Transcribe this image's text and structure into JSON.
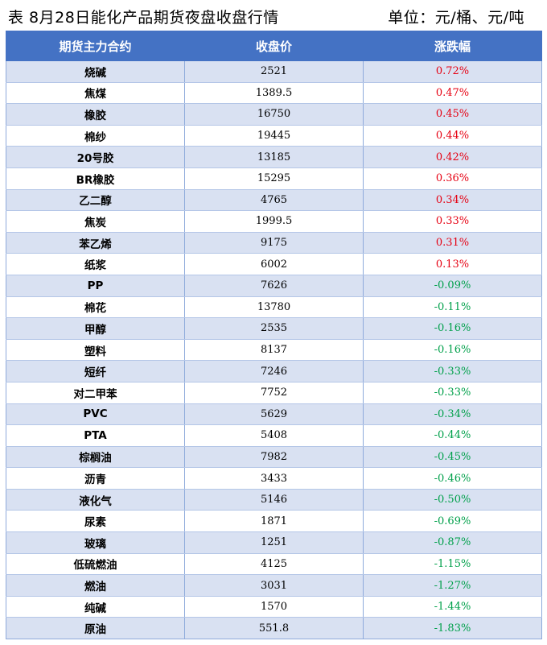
{
  "caption": {
    "title": "表 8月28日能化产品期货夜盘收盘行情",
    "unit": "单位：元/桶、元/吨"
  },
  "colors": {
    "header_bg": "#4472c4",
    "stripe": "#d9e1f2",
    "up": "#e60012",
    "down": "#00a04a"
  },
  "table": {
    "headers": [
      "期货主力合约",
      "收盘价",
      "涨跌幅"
    ],
    "rows": [
      {
        "name": "烧碱",
        "close": "2521",
        "change": "0.72%"
      },
      {
        "name": "焦煤",
        "close": "1389.5",
        "change": "0.47%"
      },
      {
        "name": "橡胶",
        "close": "16750",
        "change": "0.45%"
      },
      {
        "name": "棉纱",
        "close": "19445",
        "change": "0.44%"
      },
      {
        "name": "20号胶",
        "close": "13185",
        "change": "0.42%"
      },
      {
        "name": "BR橡胶",
        "close": "15295",
        "change": "0.36%"
      },
      {
        "name": "乙二醇",
        "close": "4765",
        "change": "0.34%"
      },
      {
        "name": "焦炭",
        "close": "1999.5",
        "change": "0.33%"
      },
      {
        "name": "苯乙烯",
        "close": "9175",
        "change": "0.31%"
      },
      {
        "name": "纸浆",
        "close": "6002",
        "change": "0.13%"
      },
      {
        "name": "PP",
        "close": "7626",
        "change": "-0.09%"
      },
      {
        "name": "棉花",
        "close": "13780",
        "change": "-0.11%"
      },
      {
        "name": "甲醇",
        "close": "2535",
        "change": "-0.16%"
      },
      {
        "name": "塑料",
        "close": "8137",
        "change": "-0.16%"
      },
      {
        "name": "短纤",
        "close": "7246",
        "change": "-0.33%"
      },
      {
        "name": "对二甲苯",
        "close": "7752",
        "change": "-0.33%"
      },
      {
        "name": "PVC",
        "close": "5629",
        "change": "-0.34%"
      },
      {
        "name": "PTA",
        "close": "5408",
        "change": "-0.44%"
      },
      {
        "name": "棕榈油",
        "close": "7982",
        "change": "-0.45%"
      },
      {
        "name": "沥青",
        "close": "3433",
        "change": "-0.46%"
      },
      {
        "name": "液化气",
        "close": "5146",
        "change": "-0.50%"
      },
      {
        "name": "尿素",
        "close": "1871",
        "change": "-0.69%"
      },
      {
        "name": "玻璃",
        "close": "1251",
        "change": "-0.87%"
      },
      {
        "name": "低硫燃油",
        "close": "4125",
        "change": "-1.15%"
      },
      {
        "name": "燃油",
        "close": "3031",
        "change": "-1.27%"
      },
      {
        "name": "纯碱",
        "close": "1570",
        "change": "-1.44%"
      },
      {
        "name": "原油",
        "close": "551.8",
        "change": "-1.83%"
      }
    ]
  }
}
